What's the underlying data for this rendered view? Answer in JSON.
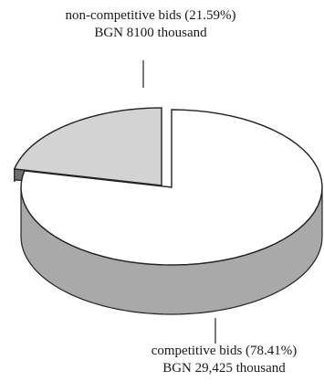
{
  "chart_data": {
    "type": "pie",
    "style": "3d-exploded",
    "slices": [
      {
        "id": "non_competitive",
        "label": "non-competitive bids (21.59%)",
        "amount_label": "BGN 8100 thousand",
        "value": 8100,
        "percent": 21.59,
        "exploded": true,
        "color": "#d3d3d3",
        "side_color": "#6e6e6e"
      },
      {
        "id": "competitive",
        "label": "competitive bids (78.41%)",
        "amount_label": "BGN 29,425 thousand",
        "value": 29425,
        "percent": 78.41,
        "exploded": false,
        "color": "#ffffff",
        "side_color": "#a9a9a9"
      }
    ],
    "title": "",
    "legend": "none",
    "outline_color": "#222222"
  }
}
